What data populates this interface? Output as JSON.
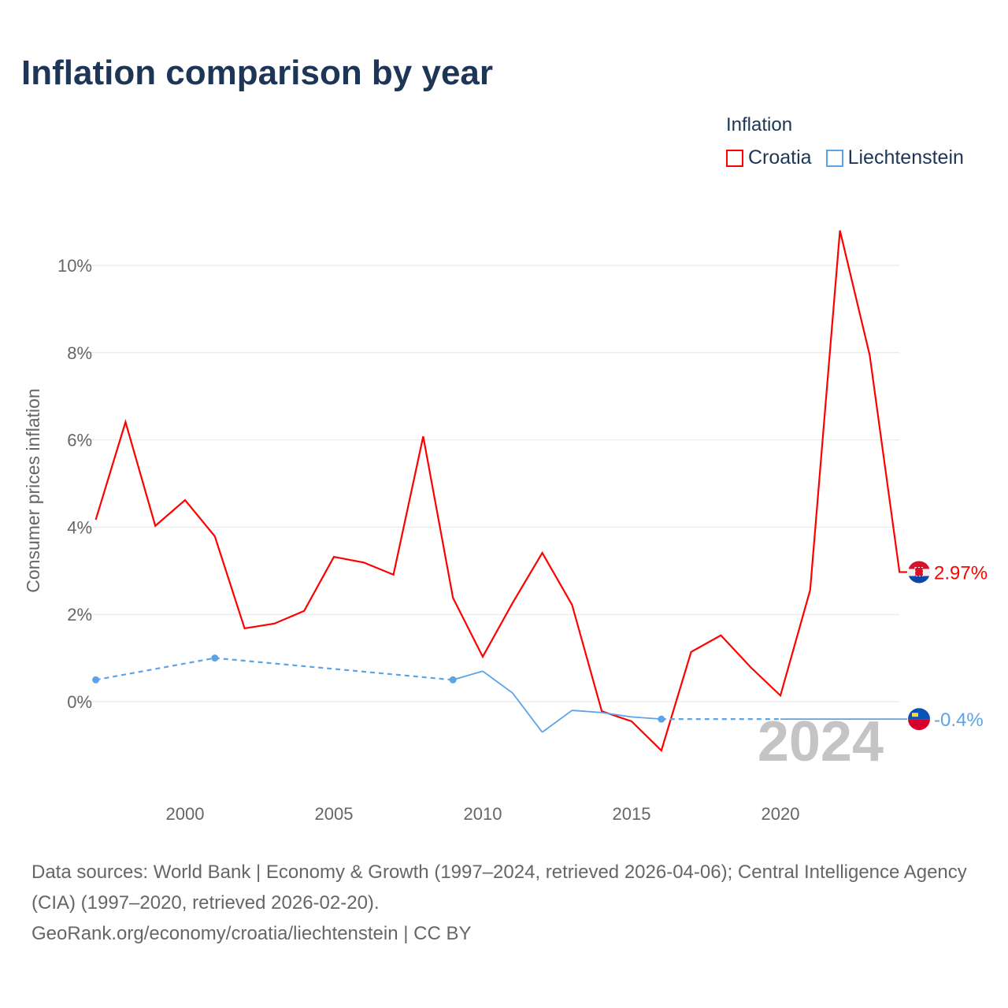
{
  "title": "Inflation comparison by year",
  "legend": {
    "title": "Inflation",
    "items": [
      {
        "label": "Croatia",
        "color": "#ff0000"
      },
      {
        "label": "Liechtenstein",
        "color": "#5ba4e8"
      }
    ]
  },
  "sources": {
    "line1": "Data sources: World Bank | Economy & Growth (1997–2024, retrieved 2026-04-06); Central Intelligence Agency (CIA) (1997–2020, retrieved 2026-02-20).",
    "line2": "GeoRank.org/economy/croatia/liechtenstein | CC BY"
  },
  "chart_data": {
    "type": "line",
    "title": "Inflation comparison by year",
    "ylabel": "Consumer prices inflation",
    "xlabel": "",
    "xlim": [
      1997,
      2024
    ],
    "ylim": [
      -2,
      11
    ],
    "yticks": [
      0,
      2,
      4,
      6,
      8,
      10
    ],
    "ytick_labels": [
      "0%",
      "2%",
      "4%",
      "6%",
      "8%",
      "10%"
    ],
    "xticks": [
      2000,
      2005,
      2010,
      2015,
      2020
    ],
    "xtick_labels": [
      "2000",
      "2005",
      "2010",
      "2015",
      "2020"
    ],
    "year_watermark": "2024",
    "grid": true,
    "series": [
      {
        "name": "Croatia",
        "color": "#ff0000",
        "end_label": "2.97%",
        "x": [
          1997,
          1998,
          1999,
          2000,
          2001,
          2002,
          2003,
          2004,
          2005,
          2006,
          2007,
          2008,
          2009,
          2010,
          2011,
          2012,
          2013,
          2014,
          2015,
          2016,
          2017,
          2018,
          2019,
          2020,
          2021,
          2022,
          2023,
          2024
        ],
        "values": [
          4.17,
          6.41,
          4.03,
          4.62,
          3.79,
          1.68,
          1.79,
          2.08,
          3.32,
          3.19,
          2.91,
          6.08,
          2.38,
          1.03,
          2.26,
          3.41,
          2.22,
          -0.22,
          -0.45,
          -1.12,
          1.14,
          1.52,
          0.79,
          0.14,
          2.56,
          10.8,
          7.94,
          2.97
        ]
      },
      {
        "name": "Liechtenstein",
        "color": "#5ba4e8",
        "end_label": "-0.4%",
        "x": [
          1997,
          2001,
          2009,
          2010,
          2011,
          2012,
          2013,
          2014,
          2015,
          2016,
          2020,
          2024
        ],
        "values": [
          0.5,
          1.0,
          0.5,
          0.7,
          0.2,
          -0.7,
          -0.2,
          -0.25,
          -0.35,
          -0.4,
          -0.4,
          -0.4
        ],
        "dashed_segments": [
          [
            1997,
            2001
          ],
          [
            2001,
            2009
          ],
          [
            2016,
            2020
          ]
        ],
        "markers": [
          1997,
          2001,
          2009,
          2016
        ]
      }
    ]
  }
}
